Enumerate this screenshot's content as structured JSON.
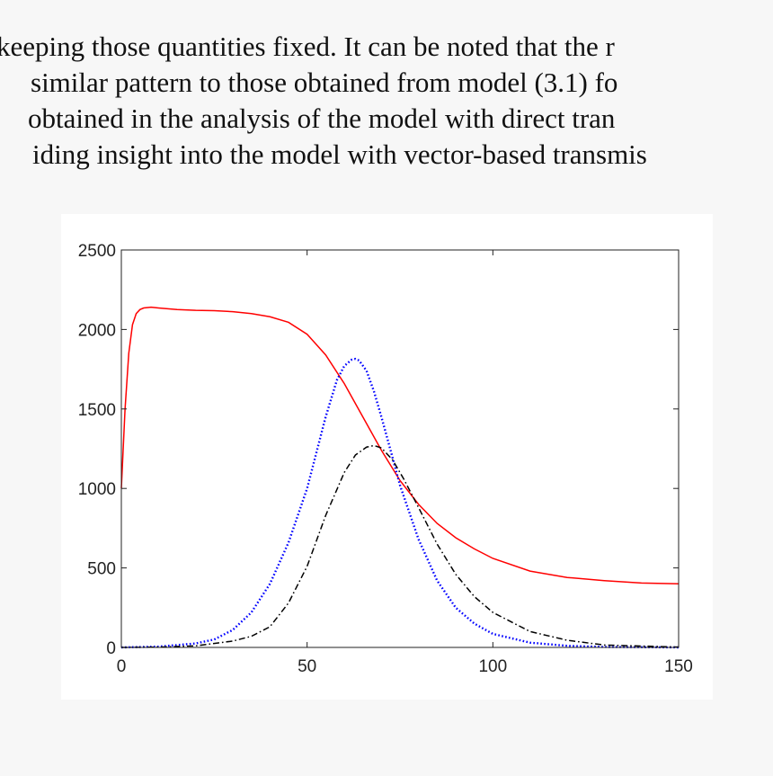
{
  "text_lines": [
    "keeping those quantities fixed. It can be noted that the r",
    "similar pattern to those obtained from model (3.1) fo",
    "obtained in the analysis of the model with direct tran",
    "iding insight into the model with vector-based transmis"
  ],
  "chart_data": {
    "type": "line",
    "xlim": [
      0,
      150
    ],
    "xticks": [
      0,
      50,
      100,
      150
    ],
    "ylim": [
      0,
      2500
    ],
    "yticks": [
      0,
      500,
      1000,
      1500,
      2000,
      2500
    ],
    "grid": false,
    "series": [
      {
        "color": "#ff0000",
        "style": "solid",
        "x": [
          0,
          1,
          2,
          3,
          4,
          5,
          6,
          8,
          10,
          15,
          20,
          25,
          30,
          35,
          40,
          45,
          50,
          55,
          60,
          65,
          70,
          75,
          80,
          85,
          90,
          95,
          100,
          110,
          120,
          130,
          140,
          150
        ],
        "values": [
          1000,
          1500,
          1850,
          2030,
          2100,
          2125,
          2135,
          2140,
          2135,
          2125,
          2120,
          2118,
          2112,
          2100,
          2080,
          2045,
          1970,
          1840,
          1660,
          1450,
          1240,
          1050,
          900,
          780,
          690,
          620,
          560,
          480,
          440,
          420,
          405,
          400
        ]
      },
      {
        "color": "#0000ff",
        "style": "dotted",
        "x": [
          0,
          10,
          20,
          25,
          30,
          35,
          40,
          45,
          50,
          55,
          58,
          60,
          62,
          63,
          64,
          66,
          68,
          70,
          72,
          75,
          80,
          85,
          90,
          95,
          100,
          110,
          120,
          130,
          150
        ],
        "values": [
          0,
          5,
          25,
          50,
          110,
          220,
          400,
          660,
          1000,
          1450,
          1680,
          1770,
          1810,
          1815,
          1805,
          1740,
          1610,
          1450,
          1280,
          1020,
          680,
          420,
          250,
          150,
          85,
          30,
          10,
          3,
          0
        ]
      },
      {
        "color": "#000000",
        "style": "dashdot",
        "x": [
          0,
          10,
          20,
          30,
          35,
          40,
          45,
          50,
          55,
          60,
          63,
          66,
          68,
          70,
          73,
          76,
          80,
          85,
          90,
          95,
          100,
          110,
          120,
          130,
          150
        ],
        "values": [
          0,
          2,
          10,
          40,
          70,
          130,
          280,
          510,
          830,
          1100,
          1210,
          1260,
          1270,
          1255,
          1180,
          1060,
          880,
          650,
          460,
          320,
          220,
          100,
          45,
          15,
          2
        ]
      }
    ]
  }
}
